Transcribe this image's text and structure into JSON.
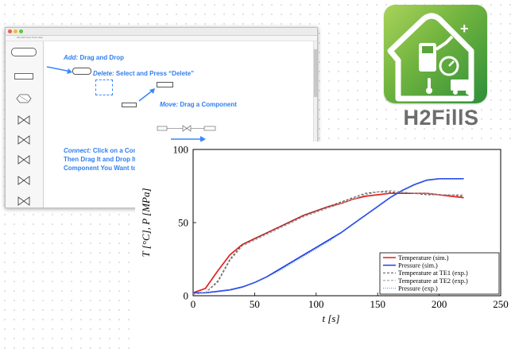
{
  "logo": {
    "text": "H2FillS"
  },
  "app_window": {
    "menu_text": "File  Edit  View  Tools  Help",
    "palette": [
      {
        "label": "",
        "kind": "pill"
      },
      {
        "label": "",
        "kind": "rect"
      },
      {
        "label": "",
        "kind": "hex"
      },
      {
        "label": "",
        "kind": "valve"
      },
      {
        "label": "",
        "kind": "valve"
      },
      {
        "label": "",
        "kind": "valve"
      },
      {
        "label": "",
        "kind": "valve"
      },
      {
        "label": "",
        "kind": "valve"
      }
    ],
    "instructions": {
      "add": {
        "key": "Add:",
        "text": " Drag and Drop"
      },
      "delete": {
        "key": "Delete:",
        "text": " Select and Press “Delete”"
      },
      "move": {
        "key": "Move:",
        "text": " Drag a Component"
      },
      "connect_line1": {
        "key": "Connect:",
        "text": " Click on a Compone"
      },
      "connect_line2": "Then Drag It and Drop It Onto",
      "connect_line3": "Component You Want to Con"
    }
  },
  "chart_data": {
    "type": "line",
    "xlabel": "t [s]",
    "ylabel": "T [°C], P [MPa]",
    "xlim": [
      0,
      250
    ],
    "ylim": [
      0,
      100
    ],
    "xticks": [
      "0",
      "50",
      "100",
      "150",
      "200",
      "250"
    ],
    "yticks": [
      "0",
      "50",
      "100"
    ],
    "legend_position": "bottom-right",
    "series": [
      {
        "name": "Temperature (sim.)",
        "color": "#e62020",
        "style": "solid",
        "x": [
          0,
          10,
          20,
          30,
          40,
          50,
          60,
          70,
          80,
          90,
          100,
          110,
          120,
          130,
          140,
          150,
          160,
          170,
          180,
          190,
          200,
          210,
          220
        ],
        "y": [
          2,
          5,
          17,
          28,
          35,
          39,
          43,
          47,
          51,
          55,
          58,
          61,
          63,
          66,
          68,
          69,
          70,
          70,
          70,
          70,
          69,
          68,
          67
        ]
      },
      {
        "name": "Pressure (sim.)",
        "color": "#1f3fe0",
        "style": "solid",
        "x": [
          0,
          10,
          20,
          30,
          40,
          50,
          60,
          70,
          80,
          90,
          100,
          110,
          120,
          130,
          140,
          150,
          160,
          170,
          180,
          190,
          200,
          210,
          220
        ],
        "y": [
          2,
          2,
          3,
          4,
          6,
          9,
          13,
          18,
          23,
          28,
          33,
          38,
          43,
          49,
          55,
          61,
          67,
          72,
          76,
          79,
          80,
          80,
          80
        ]
      },
      {
        "name": "Temperature at TE1 (exp.)",
        "color": "#4a4a4a",
        "style": "dashed",
        "x": [
          0,
          10,
          20,
          30,
          40,
          50,
          60,
          70,
          80,
          90,
          100,
          110,
          120,
          130,
          140,
          150,
          160,
          170,
          180,
          190,
          200,
          210,
          220
        ],
        "y": [
          1,
          2,
          10,
          25,
          35,
          39,
          43,
          47,
          51,
          55,
          58,
          61,
          64,
          67,
          70,
          71,
          71,
          70,
          70,
          69,
          69,
          69,
          68
        ]
      },
      {
        "name": "Temperature at TE2 (exp.)",
        "color": "#9a9a9a",
        "style": "dashed",
        "x": [
          0,
          10,
          20,
          30,
          40,
          50,
          60,
          70,
          80,
          90,
          100,
          110,
          120,
          130,
          140,
          150,
          160,
          170,
          180,
          190,
          200,
          210,
          220
        ],
        "y": [
          1,
          2,
          9,
          24,
          34,
          38,
          42,
          46,
          50,
          54,
          57,
          60,
          63,
          66,
          69,
          71,
          72,
          71,
          70,
          70,
          69,
          69,
          69
        ]
      },
      {
        "name": "Pressure (exp.)",
        "color": "#4a7cff",
        "style": "dotted",
        "x": [
          0,
          10,
          20,
          30,
          40,
          50,
          60,
          70,
          80,
          90,
          100,
          110,
          120,
          130,
          140,
          150,
          160,
          170,
          180,
          190,
          200,
          210,
          220
        ],
        "y": [
          2,
          2,
          3,
          4,
          6,
          9,
          13,
          17,
          22,
          27,
          32,
          37,
          43,
          49,
          55,
          61,
          67,
          72,
          76,
          79,
          80,
          80,
          80
        ]
      }
    ]
  }
}
